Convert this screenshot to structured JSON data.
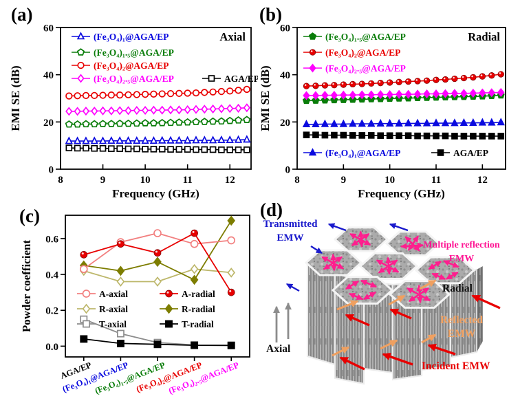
{
  "figure": {
    "panels": {
      "a": {
        "tag": "(a)"
      },
      "b": {
        "tag": "(b)"
      },
      "c": {
        "tag": "(c)"
      },
      "d": {
        "tag": "(d)"
      }
    }
  },
  "chart_data": [
    {
      "id": "a",
      "type": "line",
      "corner_label": "Axial",
      "xlabel": "Frequency (GHz)",
      "ylabel": "EMI SE (dB)",
      "xlim": [
        8,
        12.5
      ],
      "ylim": [
        0,
        60
      ],
      "xticks": [
        8,
        9,
        10,
        11,
        12
      ],
      "xtick_labels": [
        "8",
        "9",
        "10",
        "11",
        "12"
      ],
      "yticks": [
        0,
        20,
        40,
        60
      ],
      "ytick_labels": [
        "0",
        "20",
        "40",
        "60"
      ],
      "x": [
        8.2,
        8.4,
        8.6,
        8.8,
        9.0,
        9.2,
        9.4,
        9.6,
        9.8,
        10.0,
        10.2,
        10.4,
        10.6,
        10.8,
        11.0,
        11.2,
        11.4,
        11.6,
        11.8,
        12.0,
        12.2,
        12.4
      ],
      "series": [
        {
          "name": "AGA/EP",
          "color": "#000000",
          "marker": "square",
          "filled": false,
          "values": [
            9.0,
            8.9,
            8.9,
            8.8,
            8.8,
            8.7,
            8.7,
            8.6,
            8.6,
            8.5,
            8.5,
            8.5,
            8.4,
            8.4,
            8.4,
            8.3,
            8.3,
            8.3,
            8.2,
            8.2,
            8.2,
            8.2
          ]
        },
        {
          "name": "(Fe₃O₄)₁@AGA/EP",
          "color": "#0a0adf",
          "marker": "triangle",
          "filled": false,
          "values": [
            11.9,
            11.9,
            11.9,
            11.9,
            11.9,
            12.0,
            12.0,
            12.0,
            12.0,
            12.0,
            12.0,
            12.1,
            12.1,
            12.1,
            12.1,
            12.2,
            12.2,
            12.2,
            12.3,
            12.3,
            12.4,
            12.5
          ]
        },
        {
          "name": "(Fe₃O₄)₁.₅@AGA/EP",
          "color": "#0a7d0a",
          "marker": "pentagon",
          "filled": false,
          "values": [
            19.0,
            19.0,
            19.1,
            19.1,
            19.2,
            19.2,
            19.3,
            19.3,
            19.4,
            19.5,
            19.5,
            19.6,
            19.7,
            19.8,
            19.9,
            20.0,
            20.1,
            20.2,
            20.3,
            20.5,
            20.7,
            20.9
          ]
        },
        {
          "name": "(Fe₃O₄)₂.₅@AGA/EP",
          "color": "#ff00ff",
          "marker": "diamond",
          "filled": false,
          "values": [
            24.5,
            24.5,
            24.6,
            24.6,
            24.7,
            24.7,
            24.8,
            24.8,
            24.9,
            24.9,
            25.0,
            25.0,
            25.1,
            25.1,
            25.2,
            25.3,
            25.4,
            25.5,
            25.6,
            25.7,
            25.8,
            26.0
          ]
        },
        {
          "name": "(Fe₃O₄)₂@AGA/EP",
          "color": "#e80000",
          "marker": "circle",
          "filled": false,
          "values": [
            31.0,
            31.1,
            31.2,
            31.2,
            31.3,
            31.4,
            31.4,
            31.5,
            31.6,
            31.7,
            31.8,
            31.9,
            32.0,
            32.1,
            32.2,
            32.3,
            32.5,
            32.7,
            32.9,
            33.1,
            33.4,
            33.8
          ]
        }
      ]
    },
    {
      "id": "b",
      "type": "line",
      "corner_label": "Radial",
      "xlabel": "Frequency (GHz)",
      "ylabel": "EMI SE (dB)",
      "xlim": [
        8,
        12.5
      ],
      "ylim": [
        0,
        60
      ],
      "xticks": [
        8,
        9,
        10,
        11,
        12
      ],
      "xtick_labels": [
        "8",
        "9",
        "10",
        "11",
        "12"
      ],
      "yticks": [
        0,
        20,
        40,
        60
      ],
      "ytick_labels": [
        "0",
        "20",
        "40",
        "60"
      ],
      "x": [
        8.2,
        8.4,
        8.6,
        8.8,
        9.0,
        9.2,
        9.4,
        9.6,
        9.8,
        10.0,
        10.2,
        10.4,
        10.6,
        10.8,
        11.0,
        11.2,
        11.4,
        11.6,
        11.8,
        12.0,
        12.2,
        12.4
      ],
      "series": [
        {
          "name": "AGA/EP",
          "color": "#000000",
          "marker": "square",
          "filled": true,
          "values": [
            14.5,
            14.5,
            14.4,
            14.4,
            14.4,
            14.3,
            14.3,
            14.3,
            14.2,
            14.2,
            14.2,
            14.2,
            14.1,
            14.1,
            14.1,
            14.1,
            14.0,
            14.0,
            14.0,
            14.0,
            14.0,
            14.0
          ]
        },
        {
          "name": "(Fe₃O₄)₁@AGA/EP",
          "color": "#0a0adf",
          "marker": "triangle",
          "filled": true,
          "values": [
            19.0,
            19.0,
            19.1,
            19.1,
            19.1,
            19.2,
            19.2,
            19.2,
            19.3,
            19.3,
            19.3,
            19.4,
            19.4,
            19.4,
            19.5,
            19.5,
            19.5,
            19.6,
            19.6,
            19.7,
            19.7,
            19.8
          ]
        },
        {
          "name": "(Fe₃O₄)₁.₅@AGA/EP",
          "color": "#0a7d0a",
          "marker": "pentagon",
          "filled": true,
          "values": [
            29.0,
            29.1,
            29.2,
            29.3,
            29.4,
            29.5,
            29.6,
            29.7,
            29.8,
            29.9,
            30.0,
            30.1,
            30.2,
            30.3,
            30.4,
            30.5,
            30.6,
            30.7,
            30.8,
            30.9,
            31.1,
            31.3
          ]
        },
        {
          "name": "(Fe₃O₄)₂.₅@AGA/EP",
          "color": "#ff00ff",
          "marker": "diamond",
          "filled": true,
          "values": [
            31.2,
            31.2,
            31.3,
            31.3,
            31.4,
            31.4,
            31.5,
            31.5,
            31.6,
            31.6,
            31.7,
            31.7,
            31.8,
            31.9,
            31.9,
            32.0,
            32.1,
            32.1,
            32.2,
            32.3,
            32.4,
            32.5
          ]
        },
        {
          "name": "(Fe₃O₄)₂@AGA/EP",
          "color": "#e80000",
          "marker": "sphere",
          "filled": true,
          "values": [
            35.2,
            35.3,
            35.5,
            35.6,
            35.8,
            36.0,
            36.1,
            36.3,
            36.5,
            36.7,
            36.9,
            37.1,
            37.3,
            37.5,
            37.8,
            38.0,
            38.3,
            38.6,
            38.9,
            39.3,
            39.7,
            40.2
          ]
        }
      ]
    },
    {
      "id": "c",
      "type": "line-categorical",
      "ylabel": "Powder coefficient",
      "ylim": [
        -0.06,
        0.73
      ],
      "yticks": [
        0.0,
        0.2,
        0.4,
        0.6
      ],
      "ytick_labels": [
        "0.0",
        "0.2",
        "0.4",
        "0.6"
      ],
      "categories": [
        "AGA/EP",
        "(Fe₃O₄)₁@AGA/EP",
        "(Fe₃O₄)₁.₅@AGA/EP",
        "(Fe₃O₄)₂@AGA/EP",
        "(Fe₃O₄)₂.₅@AGA/EP"
      ],
      "category_colors": [
        "#000000",
        "#0a0adf",
        "#0a7d0a",
        "#e80000",
        "#ff00ff"
      ],
      "series": [
        {
          "name": "T-axial",
          "color": "#8c8c8c",
          "marker": "square",
          "filled": false,
          "values": [
            0.15,
            0.07,
            0.02,
            0.006,
            0.005
          ]
        },
        {
          "name": "T-radial",
          "color": "#000000",
          "marker": "square",
          "filled": true,
          "values": [
            0.04,
            0.015,
            0.01,
            0.005,
            0.004
          ]
        },
        {
          "name": "R-axial",
          "color": "#bdb76b",
          "marker": "diamond",
          "filled": false,
          "values": [
            0.42,
            0.36,
            0.36,
            0.43,
            0.41
          ]
        },
        {
          "name": "R-radial",
          "color": "#7d7d00",
          "marker": "diamond",
          "filled": true,
          "values": [
            0.45,
            0.42,
            0.47,
            0.37,
            0.7
          ]
        },
        {
          "name": "A-axial",
          "color": "#f28080",
          "marker": "circle",
          "filled": false,
          "values": [
            0.43,
            0.58,
            0.63,
            0.57,
            0.59
          ]
        },
        {
          "name": "A-radial",
          "color": "#e80000",
          "marker": "sphere",
          "filled": true,
          "values": [
            0.51,
            0.57,
            0.52,
            0.63,
            0.3
          ]
        }
      ]
    }
  ],
  "diagram": {
    "labels": {
      "transmitted": "Transmitted EMW",
      "multiple_reflection": "Multiple reflection EMW",
      "radial": "Radial",
      "reflected": "Reflected EMW",
      "incident": "Incident EMW",
      "axial": "Axial"
    },
    "colors": {
      "transmitted": "#1a1acc",
      "multiple_reflection": "#ff1e8e",
      "multiple_reflection_text": "#ff1493",
      "incident": "#e80000",
      "reflected": "#f0a060",
      "axial": "#8c8c8c",
      "black_text": "#111111"
    }
  }
}
